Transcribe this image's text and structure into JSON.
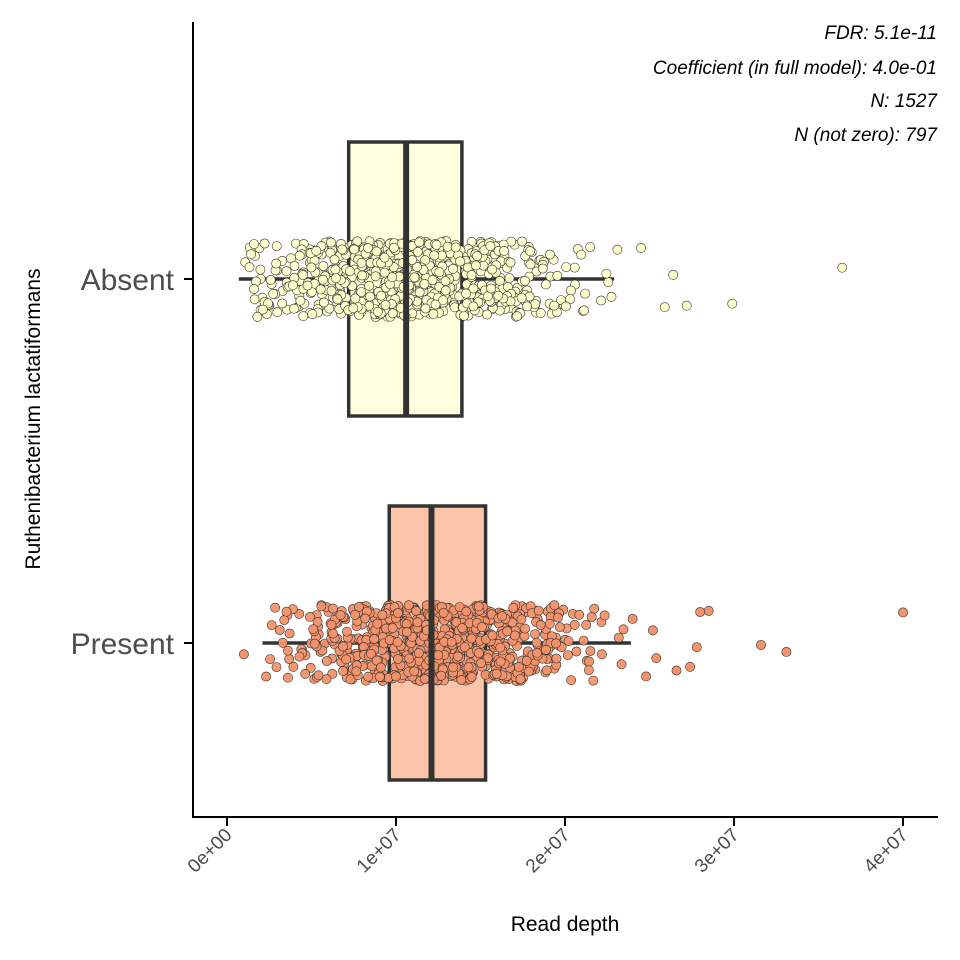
{
  "chart_data": {
    "type": "boxplot",
    "orientation": "horizontal",
    "xlabel": "Read depth",
    "ylabel": "Ruthenibacterium lactatiformans",
    "xlim": [
      -1000000,
      42000000
    ],
    "xticks": [
      0,
      10000000,
      20000000,
      30000000,
      40000000
    ],
    "xtick_labels": [
      "0e+00",
      "1e+07",
      "2e+07",
      "3e+07",
      "4e+07"
    ],
    "grid": false,
    "legend": "none",
    "annotations": [
      "FDR: 5.1e-11",
      "Coefficient (in full model): 4.0e-01",
      "N: 1527",
      "N (not zero): 797"
    ],
    "groups": [
      {
        "label": "Absent",
        "fill": "#ffffdd",
        "point_fill": "#ffffcc",
        "box": {
          "whisker_low": 700000,
          "q1": 7200000,
          "median": 10600000,
          "q3": 13900000,
          "whisker_high": 22900000
        },
        "outliers": [
          23100000,
          25900000,
          26400000,
          29900000,
          24500000,
          27200000,
          36400000
        ],
        "approx_n_points": 730
      },
      {
        "label": "Present",
        "fill": "#fcc5aa",
        "point_fill": "#f4936b",
        "box": {
          "whisker_low": 2100000,
          "q1": 9600000,
          "median": 12100000,
          "q3": 15300000,
          "whisker_high": 23900000
        },
        "outliers": [
          1000000,
          24000000,
          24800000,
          25400000,
          25200000,
          26600000,
          27400000,
          27800000,
          28500000,
          28000000,
          31600000,
          33100000,
          40000000
        ],
        "approx_n_points": 797
      }
    ]
  },
  "colors": {
    "box_outline": "#333333",
    "point_outline": "#333333",
    "axis": "#000000",
    "tick_text": "#4d4d4d"
  }
}
